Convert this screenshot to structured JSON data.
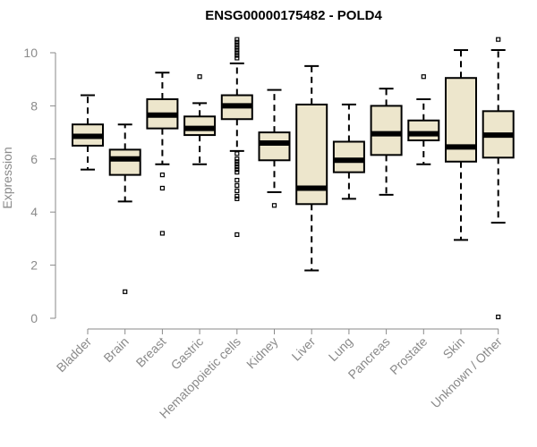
{
  "chart_data": {
    "type": "boxplot",
    "title": "ENSG00000175482 - POLD4",
    "ylabel": "Expression",
    "xlabel": "",
    "ylim": [
      0,
      10.5
    ],
    "yticks": [
      0,
      2,
      4,
      6,
      8,
      10
    ],
    "box_color": "#ede6cc",
    "categories": [
      "Bladder",
      "Brain",
      "Breast",
      "Gastric",
      "Hematopoietic cells",
      "Kidney",
      "Liver",
      "Lung",
      "Pancreas",
      "Prostate",
      "Skin",
      "Unknown / Other"
    ],
    "boxes": [
      {
        "category": "Bladder",
        "whisker_low": 5.6,
        "q1": 6.5,
        "median": 6.85,
        "q3": 7.3,
        "whisker_high": 8.4,
        "outliers": []
      },
      {
        "category": "Brain",
        "whisker_low": 4.4,
        "q1": 5.4,
        "median": 6.0,
        "q3": 6.35,
        "whisker_high": 7.3,
        "outliers": [
          1.0
        ]
      },
      {
        "category": "Breast",
        "whisker_low": 5.8,
        "q1": 7.15,
        "median": 7.65,
        "q3": 8.25,
        "whisker_high": 9.25,
        "outliers": [
          5.4,
          4.9,
          3.2
        ]
      },
      {
        "category": "Gastric",
        "whisker_low": 5.8,
        "q1": 6.9,
        "median": 7.15,
        "q3": 7.6,
        "whisker_high": 8.1,
        "outliers": [
          9.1
        ]
      },
      {
        "category": "Hematopoietic cells",
        "whisker_low": 6.3,
        "q1": 7.5,
        "median": 8.0,
        "q3": 8.4,
        "whisker_high": 9.6,
        "outliers": [
          10.5,
          10.4,
          10.3,
          10.2,
          10.1,
          10.0,
          9.9,
          9.8,
          6.2,
          6.0,
          5.9,
          5.8,
          5.7,
          5.6,
          5.5,
          5.2,
          5.0,
          4.8,
          4.6,
          4.5,
          3.15
        ]
      },
      {
        "category": "Kidney",
        "whisker_low": 4.75,
        "q1": 5.95,
        "median": 6.6,
        "q3": 7.0,
        "whisker_high": 8.6,
        "outliers": [
          4.25
        ]
      },
      {
        "category": "Liver",
        "whisker_low": 1.8,
        "q1": 4.3,
        "median": 4.9,
        "q3": 8.05,
        "whisker_high": 9.5,
        "outliers": []
      },
      {
        "category": "Lung",
        "whisker_low": 4.5,
        "q1": 5.5,
        "median": 5.95,
        "q3": 6.65,
        "whisker_high": 8.05,
        "outliers": []
      },
      {
        "category": "Pancreas",
        "whisker_low": 4.65,
        "q1": 6.15,
        "median": 6.95,
        "q3": 8.0,
        "whisker_high": 8.65,
        "outliers": []
      },
      {
        "category": "Prostate",
        "whisker_low": 5.8,
        "q1": 6.7,
        "median": 6.95,
        "q3": 7.45,
        "whisker_high": 8.25,
        "outliers": [
          9.1
        ]
      },
      {
        "category": "Skin",
        "whisker_low": 2.95,
        "q1": 5.9,
        "median": 6.45,
        "q3": 9.05,
        "whisker_high": 10.1,
        "outliers": []
      },
      {
        "category": "Unknown / Other",
        "whisker_low": 3.6,
        "q1": 6.05,
        "median": 6.9,
        "q3": 7.8,
        "whisker_high": 10.1,
        "outliers": [
          10.5,
          0.05
        ]
      }
    ]
  }
}
